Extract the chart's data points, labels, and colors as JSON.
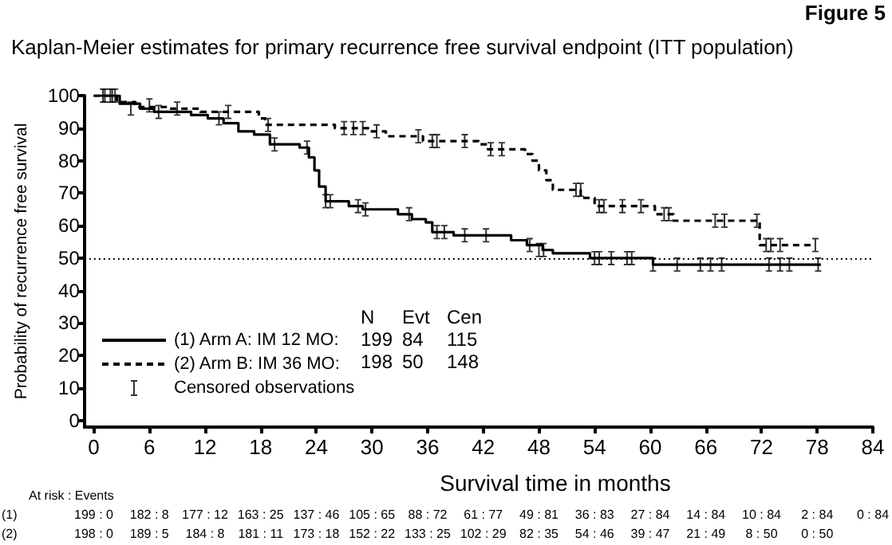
{
  "chart_data": {
    "type": "step",
    "title": "Kaplan-Meier estimates for primary recurrence free survival endpoint (ITT population)",
    "xlabel": "Survival time in months",
    "ylabel": "Probability of recurrence free survival",
    "xlim": [
      -1,
      84
    ],
    "xticks": [
      0,
      6,
      12,
      18,
      24,
      30,
      36,
      42,
      48,
      54,
      60,
      66,
      72,
      78,
      84
    ],
    "ylim": [
      -2,
      100
    ],
    "yticks": [
      0,
      10,
      20,
      30,
      40,
      50,
      60,
      70,
      80,
      90,
      100
    ],
    "grid": false,
    "legend": "bottom left",
    "ref_lines": [
      {
        "axis": "y",
        "value": 50,
        "label": null,
        "color": "#000000",
        "line_style": "dotted"
      }
    ],
    "series": [
      {
        "name": "(1) Arm A: IM 12 MO:",
        "color": "#000000",
        "line_style": "solid",
        "x": [
          0,
          2.8,
          5,
          6.5,
          10.5,
          12.3,
          14,
          15.6,
          17.3,
          19,
          22.2,
          23.2,
          23.8,
          24.3,
          25,
          27.5,
          29,
          32.8,
          34.3,
          35.8,
          36.5,
          38.8,
          45,
          46.7,
          48.4,
          49.5,
          53.5,
          60.3,
          78.4
        ],
        "values": [
          100,
          97.5,
          96,
          95,
          94,
          93,
          91.5,
          89,
          88,
          85,
          84,
          81,
          77,
          72,
          67.5,
          66,
          65,
          63.5,
          62,
          61,
          58,
          57,
          55.5,
          54,
          52.5,
          51.5,
          50,
          48,
          48
        ]
      },
      {
        "name": "(2) Arm B: IM 36 MO:",
        "color": "#000000",
        "line_style": "dashed",
        "x": [
          0,
          2.5,
          4.5,
          8,
          11.5,
          17.8,
          18.5,
          26,
          29.8,
          31.5,
          35.5,
          41.5,
          42.5,
          46.5,
          47.3,
          48,
          48.8,
          49.5,
          52.5,
          54,
          60.5,
          62.5,
          71.8,
          77.8
        ],
        "values": [
          100,
          98,
          96.5,
          96,
          95,
          93,
          91,
          90,
          89,
          87.5,
          86,
          85,
          83.5,
          82,
          80,
          77,
          74,
          71,
          68.5,
          66,
          63.5,
          61.5,
          54,
          54
        ]
      },
      {
        "name": "Censored observations",
        "type": "scatter",
        "color": "#000000",
        "x": [
          1.2,
          1.8,
          2.3,
          4,
          7,
          13.5,
          19.5,
          23,
          25,
          25.5,
          28.5,
          29.3,
          34,
          37,
          37.8,
          40,
          42.3,
          47,
          48,
          48.5,
          54,
          54.5,
          55.8,
          57.5,
          58,
          60.3,
          62.9,
          65.4,
          66.5,
          67.7,
          72.8,
          74,
          75,
          78.1,
          1,
          2,
          6,
          9,
          14.5,
          18.8,
          27,
          28,
          29,
          30.5,
          35,
          36.5,
          37,
          40,
          42.8,
          44,
          52,
          52.5,
          54.5,
          55,
          57,
          59,
          61.5,
          62,
          67,
          68,
          71.5,
          72.5,
          73,
          74,
          77.8
        ],
        "values": [
          100,
          100,
          100,
          96,
          95,
          93,
          85,
          84,
          67.5,
          67.5,
          66,
          65,
          63.5,
          58,
          58,
          57,
          57,
          54,
          52.5,
          52.5,
          50,
          50,
          50,
          50,
          50,
          48,
          48,
          48,
          48,
          48,
          48,
          48,
          48,
          48,
          100,
          100,
          97,
          96,
          95,
          91,
          90,
          90,
          90,
          89,
          87.5,
          86,
          86,
          86,
          83.5,
          83.5,
          71,
          71,
          66,
          66,
          66,
          66,
          63.5,
          63.5,
          61.5,
          61.5,
          61.5,
          54,
          54,
          54,
          54
        ]
      }
    ],
    "annotations": [
      "Figure 5",
      "N",
      "Evt",
      "Cen",
      "199",
      "84",
      "115",
      "198",
      "50",
      "148",
      "At risk : Events",
      "(1)",
      "199 : 0",
      "182 : 8",
      "177 : 12",
      "163 : 25",
      "137 : 46",
      "105 : 65",
      "88 : 72",
      "61 : 77",
      "49 : 81",
      "36 : 83",
      "27 : 84",
      "14 : 84",
      "10 : 84",
      "2 : 84",
      "0 : 84",
      "(2)",
      "198 : 0",
      "189 : 5",
      "184 : 8",
      "181 : 11",
      "173 : 18",
      "152 : 22",
      "133 : 25",
      "102 : 29",
      "82 : 35",
      "54 : 46",
      "39 : 47",
      "21 : 49",
      "8 : 50",
      "0 : 50"
    ]
  }
}
